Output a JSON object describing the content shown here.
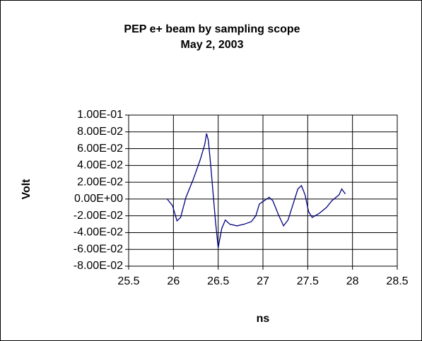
{
  "chart_data": {
    "type": "line",
    "title": "PEP e+ beam by sampling scope",
    "subtitle": "May 2, 2003",
    "xlabel": "ns",
    "ylabel": "Volt",
    "xlim": [
      25.5,
      28.5
    ],
    "xticks": [
      25.5,
      26,
      26.5,
      27,
      27.5,
      28,
      28.5
    ],
    "ylim": [
      -0.08,
      0.1
    ],
    "yticks": [
      {
        "value": -0.08,
        "label": "-8.00E-02"
      },
      {
        "value": -0.06,
        "label": "-6.00E-02"
      },
      {
        "value": -0.04,
        "label": "-4.00E-02"
      },
      {
        "value": -0.02,
        "label": "-2.00E-02"
      },
      {
        "value": 0,
        "label": "0.00E+00"
      },
      {
        "value": 0.02,
        "label": "2.00E-02"
      },
      {
        "value": 0.04,
        "label": "4.00E-02"
      },
      {
        "value": 0.06,
        "label": "6.00E-02"
      },
      {
        "value": 0.08,
        "label": "8.00E-02"
      },
      {
        "value": 0.1,
        "label": "1.00E-01"
      }
    ],
    "grid": true,
    "color": "#000080",
    "x": [
      25.93,
      25.99,
      26.04,
      26.08,
      26.14,
      26.22,
      26.3,
      26.35,
      26.37,
      26.39,
      26.42,
      26.47,
      26.5,
      26.54,
      26.58,
      26.63,
      26.71,
      26.79,
      26.87,
      26.92,
      26.96,
      27.0,
      27.07,
      27.11,
      27.17,
      27.23,
      27.28,
      27.34,
      27.39,
      27.43,
      27.47,
      27.51,
      27.55,
      27.63,
      27.71,
      27.77,
      27.85,
      27.88,
      27.92
    ],
    "values": [
      0.0,
      -0.008,
      -0.026,
      -0.022,
      0.002,
      0.023,
      0.047,
      0.065,
      0.078,
      0.07,
      0.036,
      -0.027,
      -0.058,
      -0.035,
      -0.025,
      -0.03,
      -0.032,
      -0.03,
      -0.027,
      -0.02,
      -0.006,
      -0.003,
      0.002,
      -0.002,
      -0.018,
      -0.032,
      -0.025,
      -0.005,
      0.012,
      0.016,
      0.005,
      -0.015,
      -0.022,
      -0.017,
      -0.01,
      -0.002,
      0.005,
      0.012,
      0.006
    ]
  }
}
